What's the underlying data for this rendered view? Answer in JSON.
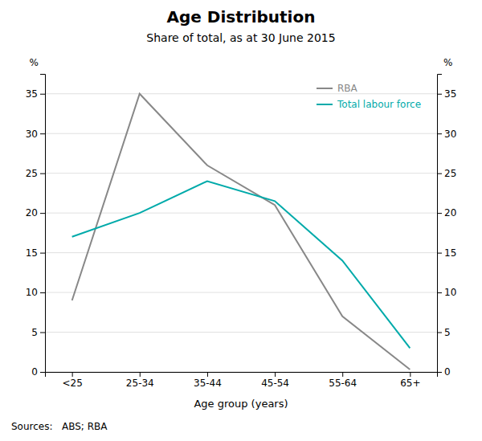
{
  "chart_data": {
    "type": "line",
    "title": "Age Distribution",
    "subtitle": "Share of total, as at 30 June 2015",
    "xlabel": "Age group (years)",
    "ylabel": "%",
    "y2label": "%",
    "source": "Sources:   ABS; RBA",
    "categories": [
      "<25",
      "25-34",
      "35-44",
      "45-54",
      "55-64",
      "65+"
    ],
    "series": [
      {
        "name": "RBA",
        "color": "#888888",
        "values": [
          9,
          35,
          26,
          21,
          7,
          0.3
        ]
      },
      {
        "name": "Total labour force",
        "color": "#00AAAA",
        "values": [
          17,
          20,
          24,
          21.5,
          14,
          3
        ]
      }
    ],
    "ylim": [
      0,
      37.5
    ],
    "yticks": [
      0,
      5,
      10,
      15,
      20,
      25,
      30,
      35
    ],
    "y2lim": [
      0,
      37.5
    ],
    "y2ticks": [
      0,
      5,
      10,
      15,
      20,
      25,
      30,
      35
    ],
    "grid": true,
    "legend": "top-right"
  }
}
